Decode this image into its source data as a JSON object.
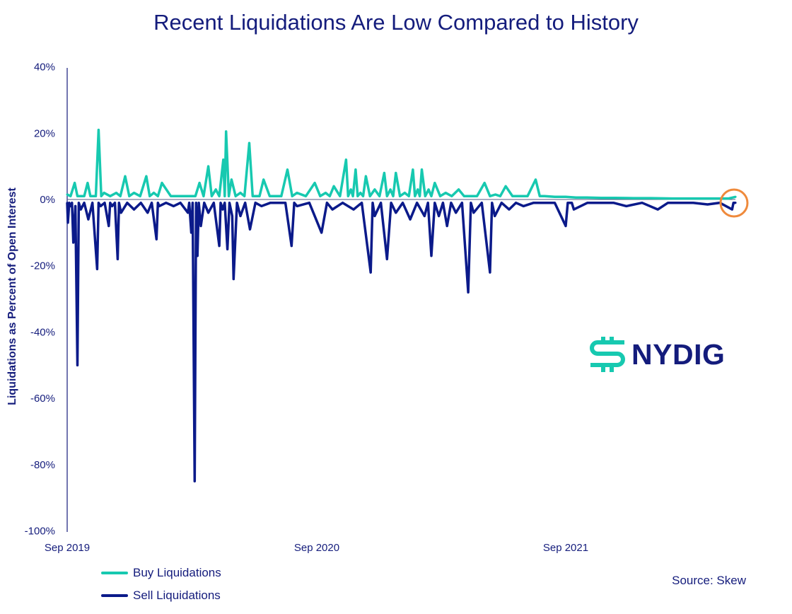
{
  "chart_data": {
    "type": "line",
    "title": "Recent Liquidations Are Low Compared to History",
    "xlabel": "",
    "ylabel": "Liquidations as Percent of Open Interest",
    "ylim": [
      -100,
      40
    ],
    "xlim": [
      "2019-09-01",
      "2022-05-10"
    ],
    "y_ticks": [
      "40%",
      "20%",
      "0%",
      "-20%",
      "-40%",
      "-60%",
      "-80%",
      "-100%"
    ],
    "y_tick_values": [
      40,
      20,
      0,
      -20,
      -40,
      -60,
      -80,
      -100
    ],
    "x_ticks": [
      "Sep 2019",
      "Sep 2020",
      "Sep 2021"
    ],
    "x_tick_values": [
      "2019-09-01",
      "2020-09-01",
      "2021-09-01"
    ],
    "grid": false,
    "legend_position": "bottom-left",
    "source": "Source: Skew",
    "colors": {
      "buy": "#17c9b0",
      "sell": "#0b1a8a",
      "highlight": "#ef8a3c",
      "text": "#141c7c"
    },
    "series": [
      {
        "name": "Buy Liquidations",
        "points": [
          [
            "2019-09-01",
            1.5
          ],
          [
            "2019-09-12",
            5
          ],
          [
            "2019-09-21",
            1
          ],
          [
            "2019-10-01",
            5
          ],
          [
            "2019-10-09",
            1
          ],
          [
            "2019-10-17",
            21
          ],
          [
            "2019-10-25",
            2
          ],
          [
            "2019-11-12",
            2
          ],
          [
            "2019-11-25",
            7
          ],
          [
            "2019-12-08",
            2
          ],
          [
            "2019-12-26",
            7
          ],
          [
            "2020-01-06",
            2
          ],
          [
            "2020-01-18",
            5
          ],
          [
            "2020-02-14",
            1
          ],
          [
            "2020-03-01",
            1
          ],
          [
            "2020-03-13",
            5
          ],
          [
            "2020-03-26",
            10
          ],
          [
            "2020-04-06",
            3
          ],
          [
            "2020-04-17",
            12
          ],
          [
            "2020-04-21",
            20.5
          ],
          [
            "2020-04-29",
            6
          ],
          [
            "2020-05-12",
            2
          ],
          [
            "2020-05-25",
            17
          ],
          [
            "2020-06-04",
            1
          ],
          [
            "2020-06-15",
            6
          ],
          [
            "2020-07-03",
            1
          ],
          [
            "2020-07-20",
            9
          ],
          [
            "2020-08-03",
            2
          ],
          [
            "2020-08-29",
            5
          ],
          [
            "2020-09-14",
            2
          ],
          [
            "2020-09-26",
            4
          ],
          [
            "2020-10-14",
            12
          ],
          [
            "2020-10-21",
            3
          ],
          [
            "2020-10-28",
            9
          ],
          [
            "2020-11-04",
            2
          ],
          [
            "2020-11-12",
            7
          ],
          [
            "2020-11-25",
            3
          ],
          [
            "2020-12-09",
            8
          ],
          [
            "2020-12-18",
            3
          ],
          [
            "2020-12-26",
            8
          ],
          [
            "2021-01-08",
            2
          ],
          [
            "2021-01-20",
            9
          ],
          [
            "2021-01-27",
            3
          ],
          [
            "2021-02-02",
            9
          ],
          [
            "2021-02-12",
            3
          ],
          [
            "2021-02-21",
            5
          ],
          [
            "2021-03-09",
            2
          ],
          [
            "2021-03-28",
            3
          ],
          [
            "2021-04-14",
            1
          ],
          [
            "2021-05-05",
            5
          ],
          [
            "2021-05-21",
            1.5
          ],
          [
            "2021-06-05",
            4
          ],
          [
            "2021-06-26",
            1
          ],
          [
            "2021-07-19",
            6
          ],
          [
            "2021-08-01",
            1
          ],
          [
            "2021-09-01",
            0.8
          ],
          [
            "2021-10-02",
            0.6
          ],
          [
            "2021-11-13",
            0.5
          ],
          [
            "2022-01-04",
            0.4
          ],
          [
            "2022-03-07",
            0.3
          ],
          [
            "2022-04-18",
            0.3
          ],
          [
            "2022-05-08",
            0.8
          ]
        ]
      },
      {
        "name": "Sell Liquidations",
        "points": [
          [
            "2019-09-01",
            -1
          ],
          [
            "2019-09-02",
            -7
          ],
          [
            "2019-09-06",
            -2
          ],
          [
            "2019-09-10",
            -13
          ],
          [
            "2019-09-13",
            -2
          ],
          [
            "2019-09-16",
            -50
          ],
          [
            "2019-09-21",
            -3
          ],
          [
            "2019-10-02",
            -6
          ],
          [
            "2019-10-15",
            -21
          ],
          [
            "2019-10-20",
            -2
          ],
          [
            "2019-11-01",
            -8
          ],
          [
            "2019-11-06",
            -2
          ],
          [
            "2019-11-14",
            -18
          ],
          [
            "2019-11-19",
            -4
          ],
          [
            "2019-12-08",
            -3
          ],
          [
            "2019-12-28",
            -4
          ],
          [
            "2020-01-10",
            -12
          ],
          [
            "2020-01-14",
            -2
          ],
          [
            "2020-02-04",
            -2
          ],
          [
            "2020-02-25",
            -4
          ],
          [
            "2020-03-01",
            -10
          ],
          [
            "2020-03-06",
            -85
          ],
          [
            "2020-03-10",
            -17
          ],
          [
            "2020-03-15",
            -8
          ],
          [
            "2020-03-26",
            -4
          ],
          [
            "2020-04-11",
            -14
          ],
          [
            "2020-04-16",
            -3
          ],
          [
            "2020-04-23",
            -15
          ],
          [
            "2020-04-30",
            -5
          ],
          [
            "2020-05-02",
            -24
          ],
          [
            "2020-05-12",
            -5
          ],
          [
            "2020-05-26",
            -9
          ],
          [
            "2020-06-12",
            -2
          ],
          [
            "2020-07-08",
            -1
          ],
          [
            "2020-07-26",
            -14
          ],
          [
            "2020-08-03",
            -2
          ],
          [
            "2020-09-08",
            -10
          ],
          [
            "2020-09-24",
            -3
          ],
          [
            "2020-10-25",
            -3
          ],
          [
            "2020-11-19",
            -22
          ],
          [
            "2020-11-25",
            -5
          ],
          [
            "2020-12-13",
            -18
          ],
          [
            "2020-12-26",
            -4
          ],
          [
            "2021-01-16",
            -6
          ],
          [
            "2021-02-06",
            -5
          ],
          [
            "2021-02-16",
            -17
          ],
          [
            "2021-02-27",
            -5
          ],
          [
            "2021-03-11",
            -8
          ],
          [
            "2021-03-24",
            -4
          ],
          [
            "2021-04-11",
            -28
          ],
          [
            "2021-04-19",
            -4
          ],
          [
            "2021-05-13",
            -22
          ],
          [
            "2021-05-20",
            -5
          ],
          [
            "2021-06-10",
            -3
          ],
          [
            "2021-07-01",
            -2
          ],
          [
            "2021-08-01",
            -1
          ],
          [
            "2021-09-01",
            -8
          ],
          [
            "2021-09-07",
            -1
          ],
          [
            "2021-09-13",
            -3
          ],
          [
            "2021-10-23",
            -1
          ],
          [
            "2021-11-29",
            -2
          ],
          [
            "2022-01-14",
            -3
          ],
          [
            "2022-02-14",
            -1
          ],
          [
            "2022-03-28",
            -1.5
          ],
          [
            "2022-05-03",
            -3
          ],
          [
            "2022-05-08",
            -1
          ]
        ]
      }
    ]
  },
  "logo": {
    "text": "NYDIG"
  }
}
